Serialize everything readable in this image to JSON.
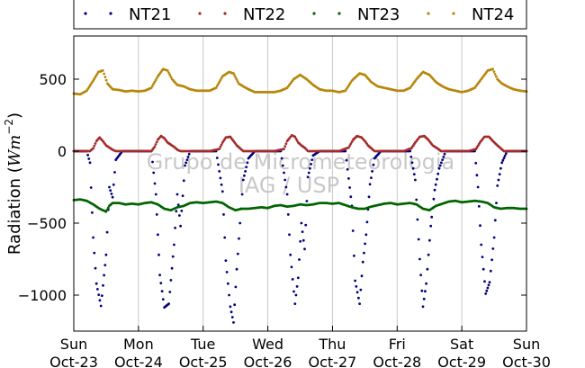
{
  "chart_data": {
    "type": "scatter",
    "title": "",
    "xlabel": "",
    "ylabel": "Radiation (",
    "ylabel_math": "Wm",
    "ylabel_exp": "−2",
    "ylabel_close": ")",
    "ylim": [
      -1250,
      800
    ],
    "xlim": [
      0,
      7
    ],
    "grid": "vertical",
    "legend_position": "top",
    "y_ticks": [
      500,
      0,
      -500,
      -1000
    ],
    "y_tick_labels": [
      "500",
      "0",
      "−500",
      "−1000"
    ],
    "x_ticks": [
      {
        "value": 0,
        "day": "Sun",
        "date": "Oct-23"
      },
      {
        "value": 1,
        "day": "Mon",
        "date": "Oct-24"
      },
      {
        "value": 2,
        "day": "Tue",
        "date": "Oct-25"
      },
      {
        "value": 3,
        "day": "Wed",
        "date": "Oct-26"
      },
      {
        "value": 4,
        "day": "Thu",
        "date": "Oct-27"
      },
      {
        "value": 5,
        "day": "Fri",
        "date": "Oct-28"
      },
      {
        "value": 6,
        "day": "Sat",
        "date": "Oct-29"
      },
      {
        "value": 7,
        "day": "Sun",
        "date": "Oct-30"
      }
    ],
    "watermark": [
      "Grupo de Micrometeorologia",
      "IAG / USP"
    ],
    "series": [
      {
        "name": "NT21",
        "color": "#000080",
        "points": [
          [
            0,
            0
          ],
          [
            0.1,
            0
          ],
          [
            0.2,
            0
          ],
          [
            0.25,
            -80
          ],
          [
            0.3,
            -600
          ],
          [
            0.35,
            -920
          ],
          [
            0.42,
            -1075
          ],
          [
            0.5,
            -720
          ],
          [
            0.55,
            -250
          ],
          [
            0.6,
            -320
          ],
          [
            0.65,
            -60
          ],
          [
            0.75,
            0
          ],
          [
            0.9,
            0
          ],
          [
            1.1,
            0
          ],
          [
            1.2,
            0
          ],
          [
            1.27,
            -300
          ],
          [
            1.33,
            -860
          ],
          [
            1.4,
            -1085
          ],
          [
            1.47,
            -1060
          ],
          [
            1.55,
            -650
          ],
          [
            1.6,
            -300
          ],
          [
            1.65,
            -520
          ],
          [
            1.72,
            -100
          ],
          [
            1.8,
            0
          ],
          [
            1.95,
            0
          ],
          [
            2.1,
            0
          ],
          [
            2.2,
            0
          ],
          [
            2.3,
            -280
          ],
          [
            2.35,
            -760
          ],
          [
            2.42,
            -1080
          ],
          [
            2.47,
            -1190
          ],
          [
            2.52,
            -820
          ],
          [
            2.57,
            -500
          ],
          [
            2.62,
            -200
          ],
          [
            2.7,
            -50
          ],
          [
            2.8,
            0
          ],
          [
            2.95,
            0
          ],
          [
            3.1,
            0
          ],
          [
            3.2,
            0
          ],
          [
            3.3,
            -300
          ],
          [
            3.35,
            -720
          ],
          [
            3.42,
            -1060
          ],
          [
            3.47,
            -880
          ],
          [
            3.52,
            -500
          ],
          [
            3.57,
            -680
          ],
          [
            3.62,
            -180
          ],
          [
            3.7,
            -30
          ],
          [
            3.8,
            0
          ],
          [
            3.95,
            0
          ],
          [
            4.1,
            0
          ],
          [
            4.2,
            0
          ],
          [
            4.3,
            -380
          ],
          [
            4.35,
            -900
          ],
          [
            4.42,
            -1060
          ],
          [
            4.47,
            -770
          ],
          [
            4.52,
            -580
          ],
          [
            4.58,
            -230
          ],
          [
            4.65,
            -50
          ],
          [
            4.75,
            0
          ],
          [
            4.9,
            0
          ],
          [
            5.1,
            0
          ],
          [
            5.2,
            0
          ],
          [
            5.28,
            -200
          ],
          [
            5.35,
            -750
          ],
          [
            5.4,
            -1080
          ],
          [
            5.45,
            -920
          ],
          [
            5.52,
            -520
          ],
          [
            5.58,
            -270
          ],
          [
            5.65,
            -120
          ],
          [
            5.75,
            0
          ],
          [
            5.9,
            0
          ],
          [
            6.1,
            0
          ],
          [
            6.2,
            0
          ],
          [
            6.25,
            -250
          ],
          [
            6.3,
            -650
          ],
          [
            6.37,
            -990
          ],
          [
            6.43,
            -910
          ],
          [
            6.5,
            -600
          ],
          [
            6.55,
            -240
          ],
          [
            6.62,
            -80
          ],
          [
            6.7,
            0
          ],
          [
            6.85,
            0
          ],
          [
            7,
            0
          ]
        ]
      },
      {
        "name": "NT22",
        "color": "#a52a2a",
        "points": [
          [
            0,
            0
          ],
          [
            0.25,
            0
          ],
          [
            0.3,
            20
          ],
          [
            0.35,
            70
          ],
          [
            0.4,
            95
          ],
          [
            0.45,
            70
          ],
          [
            0.5,
            40
          ],
          [
            0.55,
            25
          ],
          [
            0.6,
            10
          ],
          [
            0.65,
            0
          ],
          [
            0.8,
            0
          ],
          [
            1.0,
            0
          ],
          [
            1.2,
            0
          ],
          [
            1.25,
            30
          ],
          [
            1.3,
            80
          ],
          [
            1.35,
            105
          ],
          [
            1.4,
            90
          ],
          [
            1.45,
            60
          ],
          [
            1.55,
            30
          ],
          [
            1.6,
            10
          ],
          [
            1.65,
            0
          ],
          [
            1.9,
            0
          ],
          [
            2.1,
            0
          ],
          [
            2.25,
            15
          ],
          [
            2.3,
            60
          ],
          [
            2.35,
            95
          ],
          [
            2.42,
            100
          ],
          [
            2.47,
            70
          ],
          [
            2.52,
            40
          ],
          [
            2.57,
            20
          ],
          [
            2.62,
            0
          ],
          [
            2.9,
            0
          ],
          [
            3.1,
            0
          ],
          [
            3.25,
            15
          ],
          [
            3.3,
            70
          ],
          [
            3.37,
            110
          ],
          [
            3.42,
            100
          ],
          [
            3.47,
            60
          ],
          [
            3.52,
            40
          ],
          [
            3.58,
            20
          ],
          [
            3.62,
            0
          ],
          [
            3.9,
            0
          ],
          [
            4.1,
            0
          ],
          [
            4.25,
            25
          ],
          [
            4.32,
            80
          ],
          [
            4.38,
            105
          ],
          [
            4.45,
            95
          ],
          [
            4.5,
            70
          ],
          [
            4.55,
            40
          ],
          [
            4.6,
            20
          ],
          [
            4.65,
            0
          ],
          [
            4.9,
            0
          ],
          [
            5.1,
            0
          ],
          [
            5.22,
            20
          ],
          [
            5.28,
            60
          ],
          [
            5.35,
            100
          ],
          [
            5.42,
            105
          ],
          [
            5.48,
            80
          ],
          [
            5.55,
            40
          ],
          [
            5.62,
            20
          ],
          [
            5.68,
            0
          ],
          [
            5.9,
            0
          ],
          [
            6.1,
            0
          ],
          [
            6.22,
            15
          ],
          [
            6.28,
            60
          ],
          [
            6.35,
            100
          ],
          [
            6.42,
            100
          ],
          [
            6.48,
            70
          ],
          [
            6.55,
            40
          ],
          [
            6.6,
            20
          ],
          [
            6.65,
            0
          ],
          [
            7,
            0
          ]
        ]
      },
      {
        "name": "NT23",
        "color": "#006400",
        "points": [
          [
            0,
            -340
          ],
          [
            0.1,
            -335
          ],
          [
            0.2,
            -345
          ],
          [
            0.3,
            -370
          ],
          [
            0.4,
            -400
          ],
          [
            0.5,
            -420
          ],
          [
            0.55,
            -380
          ],
          [
            0.6,
            -360
          ],
          [
            0.7,
            -360
          ],
          [
            0.8,
            -370
          ],
          [
            0.9,
            -365
          ],
          [
            1.0,
            -370
          ],
          [
            1.1,
            -360
          ],
          [
            1.2,
            -355
          ],
          [
            1.3,
            -370
          ],
          [
            1.4,
            -400
          ],
          [
            1.5,
            -410
          ],
          [
            1.6,
            -390
          ],
          [
            1.7,
            -380
          ],
          [
            1.8,
            -360
          ],
          [
            1.9,
            -355
          ],
          [
            2.0,
            -360
          ],
          [
            2.1,
            -355
          ],
          [
            2.2,
            -350
          ],
          [
            2.3,
            -360
          ],
          [
            2.4,
            -390
          ],
          [
            2.5,
            -410
          ],
          [
            2.6,
            -400
          ],
          [
            2.7,
            -400
          ],
          [
            2.8,
            -395
          ],
          [
            2.9,
            -390
          ],
          [
            3.0,
            -395
          ],
          [
            3.1,
            -380
          ],
          [
            3.2,
            -375
          ],
          [
            3.3,
            -385
          ],
          [
            3.4,
            -380
          ],
          [
            3.5,
            -370
          ],
          [
            3.6,
            -375
          ],
          [
            3.7,
            -370
          ],
          [
            3.8,
            -360
          ],
          [
            3.9,
            -360
          ],
          [
            4.0,
            -365
          ],
          [
            4.1,
            -360
          ],
          [
            4.2,
            -375
          ],
          [
            4.3,
            -390
          ],
          [
            4.4,
            -400
          ],
          [
            4.5,
            -400
          ],
          [
            4.6,
            -385
          ],
          [
            4.7,
            -375
          ],
          [
            4.8,
            -365
          ],
          [
            4.9,
            -360
          ],
          [
            5.0,
            -370
          ],
          [
            5.1,
            -365
          ],
          [
            5.2,
            -360
          ],
          [
            5.3,
            -370
          ],
          [
            5.4,
            -400
          ],
          [
            5.5,
            -410
          ],
          [
            5.6,
            -380
          ],
          [
            5.7,
            -365
          ],
          [
            5.8,
            -350
          ],
          [
            5.9,
            -345
          ],
          [
            6.0,
            -355
          ],
          [
            6.1,
            -350
          ],
          [
            6.2,
            -345
          ],
          [
            6.3,
            -350
          ],
          [
            6.4,
            -360
          ],
          [
            6.5,
            -390
          ],
          [
            6.6,
            -400
          ],
          [
            6.7,
            -395
          ],
          [
            6.8,
            -395
          ],
          [
            6.9,
            -400
          ],
          [
            7.0,
            -400
          ]
        ]
      },
      {
        "name": "NT24",
        "color": "#b8860b",
        "points": [
          [
            0,
            400
          ],
          [
            0.1,
            395
          ],
          [
            0.2,
            420
          ],
          [
            0.3,
            490
          ],
          [
            0.38,
            550
          ],
          [
            0.45,
            560
          ],
          [
            0.52,
            470
          ],
          [
            0.6,
            430
          ],
          [
            0.7,
            425
          ],
          [
            0.8,
            415
          ],
          [
            0.9,
            420
          ],
          [
            1.0,
            415
          ],
          [
            1.1,
            420
          ],
          [
            1.2,
            440
          ],
          [
            1.3,
            520
          ],
          [
            1.38,
            570
          ],
          [
            1.45,
            560
          ],
          [
            1.52,
            500
          ],
          [
            1.6,
            460
          ],
          [
            1.7,
            450
          ],
          [
            1.8,
            430
          ],
          [
            1.9,
            420
          ],
          [
            2.0,
            420
          ],
          [
            2.1,
            420
          ],
          [
            2.2,
            440
          ],
          [
            2.3,
            520
          ],
          [
            2.4,
            550
          ],
          [
            2.47,
            540
          ],
          [
            2.55,
            470
          ],
          [
            2.62,
            450
          ],
          [
            2.7,
            430
          ],
          [
            2.8,
            410
          ],
          [
            2.9,
            410
          ],
          [
            3.0,
            410
          ],
          [
            3.1,
            410
          ],
          [
            3.2,
            420
          ],
          [
            3.3,
            440
          ],
          [
            3.4,
            500
          ],
          [
            3.5,
            530
          ],
          [
            3.6,
            500
          ],
          [
            3.7,
            460
          ],
          [
            3.8,
            430
          ],
          [
            3.9,
            420
          ],
          [
            4.0,
            420
          ],
          [
            4.1,
            410
          ],
          [
            4.2,
            420
          ],
          [
            4.3,
            490
          ],
          [
            4.42,
            540
          ],
          [
            4.5,
            530
          ],
          [
            4.6,
            480
          ],
          [
            4.7,
            450
          ],
          [
            4.8,
            440
          ],
          [
            4.9,
            430
          ],
          [
            5.0,
            420
          ],
          [
            5.1,
            420
          ],
          [
            5.2,
            440
          ],
          [
            5.3,
            500
          ],
          [
            5.4,
            550
          ],
          [
            5.5,
            530
          ],
          [
            5.6,
            480
          ],
          [
            5.7,
            450
          ],
          [
            5.8,
            430
          ],
          [
            5.9,
            420
          ],
          [
            6.0,
            410
          ],
          [
            6.1,
            420
          ],
          [
            6.2,
            440
          ],
          [
            6.3,
            500
          ],
          [
            6.4,
            560
          ],
          [
            6.48,
            570
          ],
          [
            6.55,
            500
          ],
          [
            6.62,
            470
          ],
          [
            6.7,
            450
          ],
          [
            6.8,
            430
          ],
          [
            6.9,
            420
          ],
          [
            7.0,
            415
          ]
        ]
      }
    ]
  }
}
